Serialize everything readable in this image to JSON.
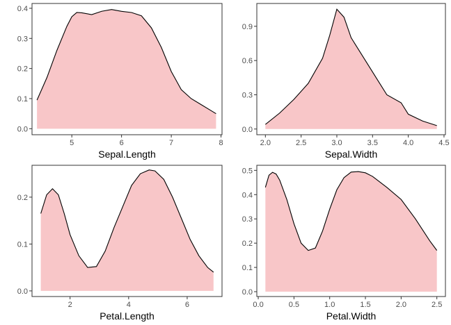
{
  "chart_data": [
    {
      "type": "area",
      "title": "",
      "xlabel": "Sepal.Length",
      "ylabel": "",
      "xlim": [
        4.2,
        8.02
      ],
      "ylim": [
        -0.02,
        0.416
      ],
      "xticks": [
        5,
        6,
        7,
        8
      ],
      "yticks": [
        0.0,
        0.1,
        0.2,
        0.3,
        0.4
      ],
      "ytick_labels": [
        "0.0",
        "0.1",
        "0.2",
        "0.3",
        "0.4"
      ],
      "grid": false,
      "fill_color": "#f8c6c8",
      "line_color": "#000000",
      "series": [
        {
          "x": [
            4.3,
            4.5,
            4.7,
            4.9,
            5.0,
            5.1,
            5.2,
            5.4,
            5.6,
            5.8,
            6.0,
            6.2,
            6.4,
            6.6,
            6.8,
            7.0,
            7.2,
            7.4,
            7.6,
            7.8,
            7.9
          ],
          "y": [
            0.095,
            0.17,
            0.26,
            0.34,
            0.372,
            0.386,
            0.385,
            0.379,
            0.39,
            0.396,
            0.39,
            0.386,
            0.375,
            0.335,
            0.27,
            0.19,
            0.13,
            0.1,
            0.08,
            0.06,
            0.05
          ]
        }
      ]
    },
    {
      "type": "area",
      "title": "",
      "xlabel": "Sepal.Width",
      "ylabel": "",
      "xlim": [
        1.88,
        4.52
      ],
      "ylim": [
        -0.05,
        1.1
      ],
      "xticks": [
        2.0,
        2.5,
        3.0,
        3.5,
        4.0,
        4.5
      ],
      "xtick_labels": [
        "2.0",
        "2.5",
        "3.0",
        "3.5",
        "4.0",
        "4.5"
      ],
      "yticks": [
        0.0,
        0.3,
        0.6,
        0.9
      ],
      "ytick_labels": [
        "0.0",
        "0.3",
        "0.6",
        "0.9"
      ],
      "grid": false,
      "fill_color": "#f8c6c8",
      "line_color": "#000000",
      "series": [
        {
          "x": [
            2.0,
            2.2,
            2.4,
            2.6,
            2.8,
            2.9,
            3.0,
            3.1,
            3.2,
            3.4,
            3.6,
            3.7,
            3.9,
            4.0,
            4.2,
            4.4
          ],
          "y": [
            0.04,
            0.14,
            0.26,
            0.4,
            0.62,
            0.82,
            1.05,
            0.98,
            0.8,
            0.6,
            0.4,
            0.3,
            0.23,
            0.13,
            0.07,
            0.03
          ]
        }
      ]
    },
    {
      "type": "area",
      "title": "",
      "xlabel": "Petal.Length",
      "ylabel": "",
      "xlim": [
        0.7,
        7.19
      ],
      "ylim": [
        -0.012,
        0.268
      ],
      "xticks": [
        2,
        4,
        6
      ],
      "yticks": [
        0.0,
        0.1,
        0.2
      ],
      "ytick_labels": [
        "0.0",
        "0.1",
        "0.2"
      ],
      "grid": false,
      "fill_color": "#f8c6c8",
      "line_color": "#000000",
      "series": [
        {
          "x": [
            1.0,
            1.2,
            1.4,
            1.6,
            1.8,
            2.0,
            2.3,
            2.6,
            2.9,
            3.2,
            3.5,
            3.8,
            4.1,
            4.4,
            4.7,
            4.9,
            5.2,
            5.5,
            5.8,
            6.1,
            6.4,
            6.7,
            6.9
          ],
          "y": [
            0.165,
            0.205,
            0.218,
            0.205,
            0.165,
            0.12,
            0.075,
            0.05,
            0.052,
            0.085,
            0.135,
            0.18,
            0.225,
            0.25,
            0.258,
            0.256,
            0.238,
            0.2,
            0.155,
            0.11,
            0.075,
            0.05,
            0.04
          ]
        }
      ]
    },
    {
      "type": "area",
      "title": "",
      "xlabel": "Petal.Width",
      "ylabel": "",
      "xlim": [
        -0.02,
        2.62
      ],
      "ylim": [
        -0.02,
        0.521
      ],
      "xticks": [
        0.0,
        0.5,
        1.0,
        1.5,
        2.0,
        2.5
      ],
      "xtick_labels": [
        "0.0",
        "0.5",
        "1.0",
        "1.5",
        "2.0",
        "2.5"
      ],
      "yticks": [
        0.0,
        0.1,
        0.2,
        0.3,
        0.4,
        0.5
      ],
      "ytick_labels": [
        "0.0",
        "0.1",
        "0.2",
        "0.3",
        "0.4",
        "0.5"
      ],
      "grid": false,
      "fill_color": "#f8c6c8",
      "line_color": "#000000",
      "series": [
        {
          "x": [
            0.1,
            0.15,
            0.2,
            0.25,
            0.3,
            0.4,
            0.5,
            0.6,
            0.7,
            0.8,
            0.9,
            1.0,
            1.1,
            1.2,
            1.3,
            1.4,
            1.5,
            1.6,
            1.8,
            2.0,
            2.2,
            2.4,
            2.5
          ],
          "y": [
            0.43,
            0.48,
            0.492,
            0.485,
            0.46,
            0.38,
            0.28,
            0.2,
            0.17,
            0.18,
            0.25,
            0.34,
            0.42,
            0.47,
            0.493,
            0.495,
            0.49,
            0.475,
            0.43,
            0.38,
            0.3,
            0.21,
            0.17
          ]
        }
      ]
    }
  ]
}
